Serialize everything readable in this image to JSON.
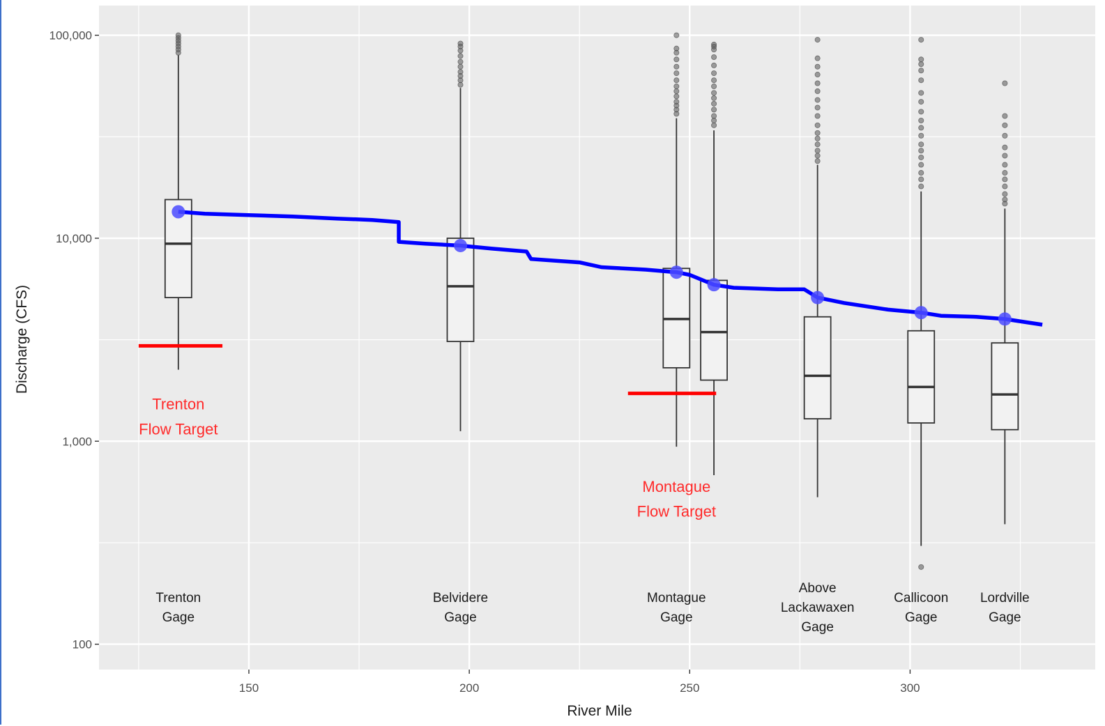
{
  "chart_data": {
    "type": "boxplot",
    "title": "",
    "xlabel": "River Mile",
    "ylabel": "Discharge (CFS)",
    "xlim": [
      116,
      342
    ],
    "ylim": [
      75,
      140000
    ],
    "y_scale": "log10",
    "x_ticks": [
      150,
      200,
      250,
      300
    ],
    "x_tick_labels": [
      "150",
      "200",
      "250",
      "300"
    ],
    "y_ticks": [
      100,
      1000,
      10000,
      100000
    ],
    "y_tick_labels": [
      "100",
      "1,000",
      "10,000",
      "100,000"
    ],
    "grid": true,
    "colors": {
      "panel": "#ebebeb",
      "grid": "#ffffff",
      "box_fill": "#f2f2f2",
      "box_stroke": "#333333",
      "outlier": "#555555",
      "flow_line": "#0000ff",
      "flow_point": "#4b4bff",
      "target": "#ff0000"
    },
    "boxes": [
      {
        "x": 134,
        "q1": 5100,
        "median": 9400,
        "q3": 15500,
        "whisker_low": 2250,
        "whisker_high": 80000,
        "outliers": [
          82000,
          85000,
          88000,
          91000,
          94000,
          97000,
          100000
        ]
      },
      {
        "x": 198,
        "q1": 3100,
        "median": 5800,
        "q3": 10000,
        "whisker_low": 1120,
        "whisker_high": 55000,
        "outliers": [
          57000,
          60000,
          63000,
          66000,
          70000,
          74000,
          79000,
          84000,
          88000,
          91000
        ]
      },
      {
        "x": 247,
        "q1": 2300,
        "median": 4000,
        "q3": 7100,
        "whisker_low": 940,
        "whisker_high": 39000,
        "outliers": [
          41000,
          43000,
          45000,
          47000,
          50000,
          53000,
          56000,
          60000,
          65000,
          70000,
          76000,
          82000,
          86000,
          100000
        ]
      },
      {
        "x": 255.5,
        "q1": 2000,
        "median": 3450,
        "q3": 6200,
        "whisker_low": 680,
        "whisker_high": 34000,
        "outliers": [
          36000,
          38000,
          40000,
          43000,
          46000,
          49000,
          52000,
          56000,
          60000,
          65000,
          71000,
          78000,
          85000,
          88000,
          90000
        ]
      },
      {
        "x": 279,
        "q1": 1290,
        "median": 2100,
        "q3": 4100,
        "whisker_low": 530,
        "whisker_high": 23000,
        "outliers": [
          24000,
          25500,
          27000,
          29000,
          31000,
          33000,
          36000,
          40000,
          44000,
          48000,
          53000,
          58000,
          64000,
          70000,
          77000,
          95000
        ]
      },
      {
        "x": 302.5,
        "q1": 1230,
        "median": 1850,
        "q3": 3500,
        "whisker_low": 305,
        "whisker_high": 17000,
        "outliers": [
          18000,
          19500,
          21000,
          23000,
          25000,
          27000,
          29000,
          32000,
          35000,
          38000,
          42000,
          47000,
          52000,
          60000,
          67000,
          72000,
          76000,
          95000,
          240
        ]
      },
      {
        "x": 321.5,
        "q1": 1140,
        "median": 1700,
        "q3": 3050,
        "whisker_low": 390,
        "whisker_high": 14000,
        "outliers": [
          14800,
          15500,
          16500,
          18000,
          19500,
          21000,
          23000,
          25500,
          28000,
          32000,
          36000,
          40000,
          58000
        ]
      }
    ],
    "flow_line": {
      "points": [
        [
          134,
          13500
        ],
        [
          140,
          13200
        ],
        [
          150,
          13000
        ],
        [
          160,
          12800
        ],
        [
          170,
          12500
        ],
        [
          178,
          12300
        ],
        [
          184,
          12000
        ],
        [
          184,
          9600
        ],
        [
          190,
          9400
        ],
        [
          198,
          9200
        ],
        [
          205,
          8900
        ],
        [
          213,
          8600
        ],
        [
          214,
          7900
        ],
        [
          225,
          7600
        ],
        [
          230,
          7200
        ],
        [
          240,
          7000
        ],
        [
          247,
          6800
        ],
        [
          250,
          6600
        ],
        [
          255.5,
          5900
        ],
        [
          260,
          5700
        ],
        [
          270,
          5600
        ],
        [
          276,
          5600
        ],
        [
          279,
          5100
        ],
        [
          285,
          4800
        ],
        [
          295,
          4450
        ],
        [
          302.5,
          4300
        ],
        [
          307,
          4150
        ],
        [
          315,
          4100
        ],
        [
          321.5,
          4000
        ],
        [
          330,
          3750
        ]
      ],
      "highlight_points": [
        [
          134,
          13500
        ],
        [
          198,
          9200
        ],
        [
          247,
          6800
        ],
        [
          255.5,
          5900
        ],
        [
          279,
          5100
        ],
        [
          302.5,
          4300
        ],
        [
          321.5,
          4000
        ]
      ]
    },
    "flow_targets": [
      {
        "x_start": 125,
        "x_end": 144,
        "y": 2950,
        "label_lines": [
          "Trenton",
          "Flow Target"
        ],
        "label_x": 134,
        "label_y": [
          1530,
          1150
        ]
      },
      {
        "x_start": 236,
        "x_end": 256,
        "y": 1720,
        "label_lines": [
          "Montague",
          "Flow Target"
        ],
        "label_x": 247,
        "label_y": [
          600,
          452
        ]
      }
    ],
    "gage_labels": [
      {
        "x": 134,
        "lines": [
          "Trenton",
          "Gage"
        ]
      },
      {
        "x": 198,
        "lines": [
          "Belvidere",
          "Gage"
        ]
      },
      {
        "x": 247,
        "lines": [
          "Montague",
          "Gage"
        ]
      },
      {
        "x": 279,
        "lines": [
          "Above",
          "Lackawaxen",
          "Gage"
        ]
      },
      {
        "x": 302.5,
        "lines": [
          "Callicoon",
          "Gage"
        ]
      },
      {
        "x": 321.5,
        "lines": [
          "Lordville",
          "Gage"
        ]
      }
    ]
  }
}
